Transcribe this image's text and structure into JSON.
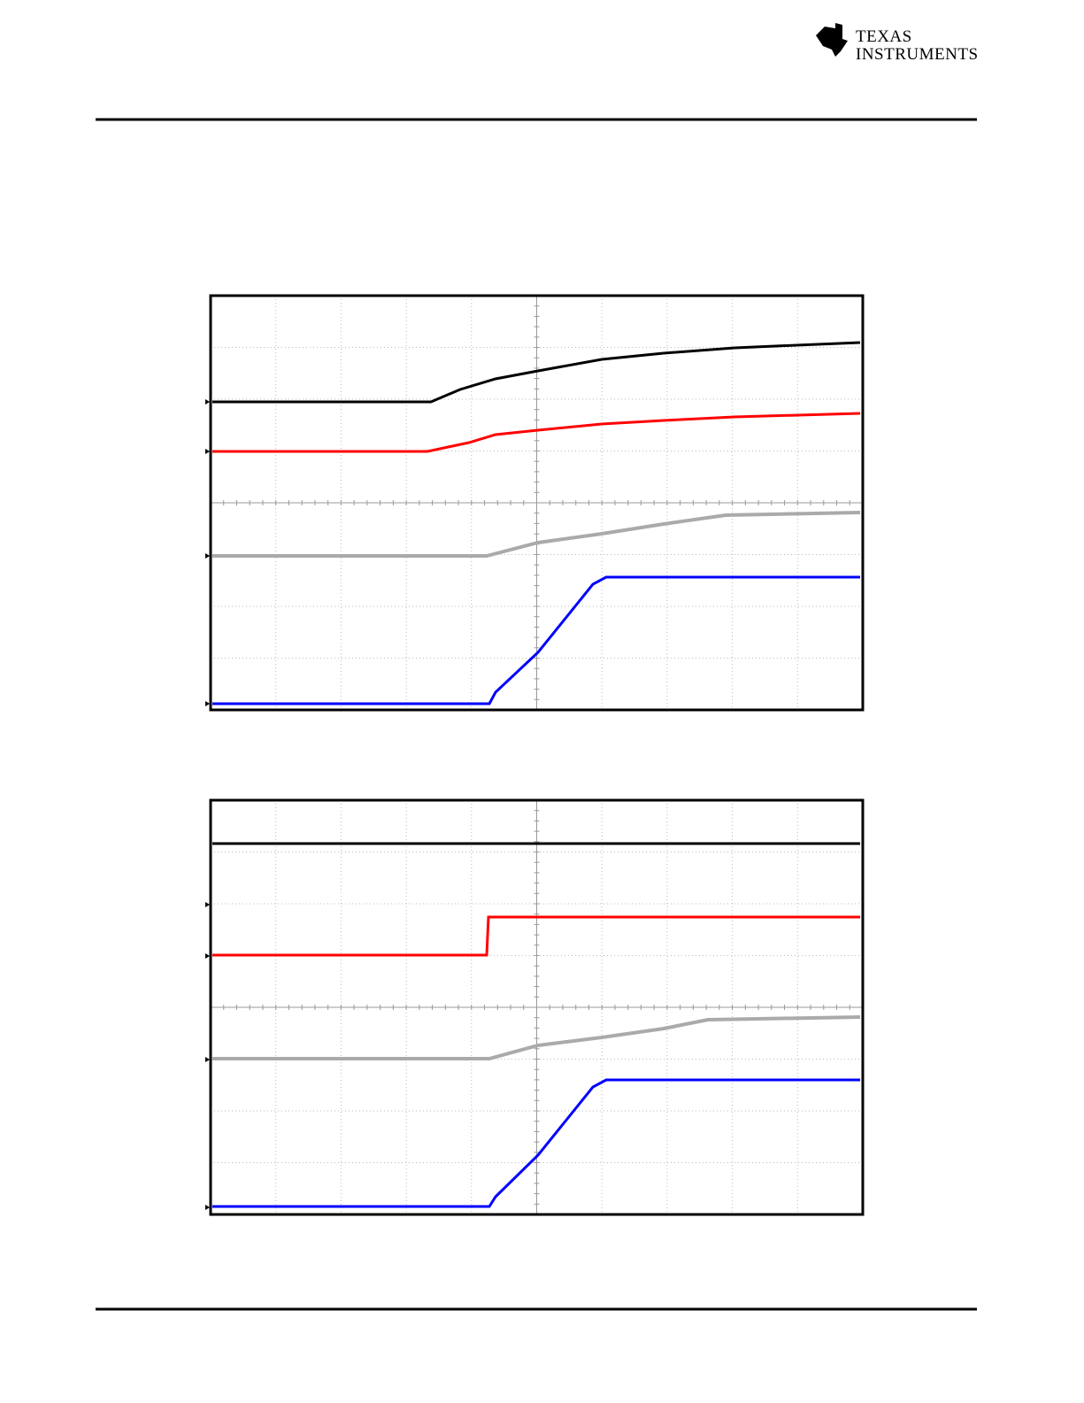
{
  "header": {
    "logo": {
      "line1": "TEXAS",
      "line2": "INSTRUMENTS"
    }
  }
}
